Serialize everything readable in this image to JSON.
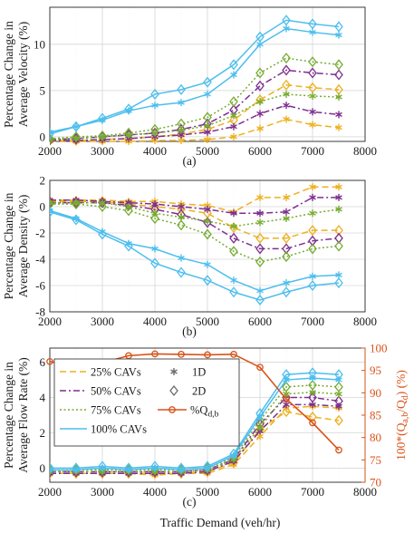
{
  "figure": {
    "xlabel": "Traffic Demand (veh/hr)",
    "x_ticks": [
      "2000",
      "3000",
      "4000",
      "5000",
      "6000",
      "7000",
      "8000"
    ],
    "x_ticks_bottom": [
      "2000",
      "3000",
      "4000",
      "5000",
      "6000",
      "7000",
      "8000"
    ]
  },
  "colors": {
    "p25": "#EDB120",
    "p50": "#7E2F8E",
    "p75": "#77AC30",
    "p100": "#4DBEEE",
    "flow": "#D95319",
    "grid": "#d6d6d6",
    "axis": "#262626"
  },
  "legend": {
    "items": [
      "25% CAVs",
      "50% CAVs",
      "75% CAVs",
      "100% CAVs"
    ],
    "marker_1d": "1D",
    "marker_2d": "2D",
    "flow_prefix": "%Q",
    "flow_sub": "d,b"
  },
  "chart_data": [
    {
      "type": "line",
      "panel_label": "(a)",
      "ylabel_lines": [
        "Percentage Change in",
        "Average Velocity (%)"
      ],
      "xlim": [
        2000,
        8000
      ],
      "ylim": [
        -0.5,
        14
      ],
      "y_ticks": [
        "0",
        "5",
        "10"
      ],
      "grid": true,
      "x": [
        2000,
        2500,
        3000,
        3500,
        4000,
        4500,
        5000,
        5500,
        6000,
        6500,
        7000,
        7500
      ],
      "series": [
        {
          "name": "25% CAVs",
          "marker": "1D",
          "values": [
            -0.5,
            -0.5,
            -0.5,
            -0.5,
            -0.4,
            -0.4,
            -0.3,
            0.0,
            0.9,
            1.9,
            1.3,
            1.0
          ]
        },
        {
          "name": "25% CAVs",
          "marker": "2D",
          "values": [
            -0.4,
            -0.4,
            -0.3,
            -0.2,
            0.0,
            0.3,
            0.8,
            1.8,
            4.0,
            5.6,
            5.3,
            5.1
          ]
        },
        {
          "name": "50% CAVs",
          "marker": "1D",
          "values": [
            -0.4,
            -0.4,
            -0.3,
            -0.2,
            0.0,
            0.2,
            0.5,
            1.1,
            2.5,
            3.4,
            2.7,
            2.4
          ]
        },
        {
          "name": "50% CAVs",
          "marker": "2D",
          "values": [
            -0.3,
            -0.2,
            0.0,
            0.2,
            0.4,
            0.8,
            1.4,
            2.9,
            5.5,
            7.2,
            6.9,
            6.7
          ]
        },
        {
          "name": "75% CAVs",
          "marker": "1D",
          "values": [
            -0.3,
            -0.2,
            0.0,
            0.2,
            0.4,
            0.7,
            1.2,
            2.3,
            3.8,
            4.6,
            4.4,
            4.3
          ]
        },
        {
          "name": "75% CAVs",
          "marker": "2D",
          "values": [
            -0.2,
            0.0,
            0.1,
            0.4,
            0.8,
            1.4,
            2.1,
            3.8,
            6.9,
            8.5,
            8.1,
            7.8
          ]
        },
        {
          "name": "100% CAVs",
          "marker": "1D",
          "values": [
            0.5,
            1.1,
            1.8,
            2.8,
            3.4,
            3.7,
            4.6,
            6.7,
            10.0,
            11.7,
            11.3,
            11.0
          ]
        },
        {
          "name": "100% CAVs",
          "marker": "2D",
          "values": [
            0.3,
            1.1,
            2.0,
            3.0,
            4.6,
            5.1,
            5.9,
            7.8,
            10.8,
            12.6,
            12.2,
            11.9
          ]
        }
      ]
    },
    {
      "type": "line",
      "panel_label": "(b)",
      "ylabel_lines": [
        "Percentage Change in",
        "Average Density (%)"
      ],
      "xlim": [
        2000,
        8000
      ],
      "ylim": [
        -8,
        2
      ],
      "y_ticks": [
        "2",
        "0",
        "-2",
        "-4",
        "-6",
        "-8"
      ],
      "grid": true,
      "x": [
        2000,
        2500,
        3000,
        3500,
        4000,
        4500,
        5000,
        5500,
        6000,
        6500,
        7000,
        7500
      ],
      "series": [
        {
          "name": "25% CAVs",
          "marker": "1D",
          "values": [
            0.5,
            0.5,
            0.5,
            0.4,
            0.4,
            0.2,
            0.1,
            -0.4,
            0.7,
            0.7,
            1.5,
            1.5
          ]
        },
        {
          "name": "25% CAVs",
          "marker": "2D",
          "values": [
            0.4,
            0.4,
            0.4,
            0.2,
            0.0,
            -0.2,
            -0.5,
            -1.6,
            -2.4,
            -2.4,
            -1.8,
            -1.8
          ]
        },
        {
          "name": "50% CAVs",
          "marker": "1D",
          "values": [
            0.5,
            0.5,
            0.4,
            0.3,
            0.2,
            0.0,
            -0.2,
            -0.5,
            -0.5,
            -0.4,
            0.7,
            0.7
          ]
        },
        {
          "name": "50% CAVs",
          "marker": "2D",
          "values": [
            0.3,
            0.3,
            0.3,
            0.1,
            -0.2,
            -0.6,
            -1.2,
            -2.4,
            -3.2,
            -3.2,
            -2.6,
            -2.4
          ]
        },
        {
          "name": "75% CAVs",
          "marker": "1D",
          "values": [
            0.3,
            0.3,
            0.3,
            0.0,
            -0.5,
            -0.8,
            -1.1,
            -1.5,
            -1.2,
            -0.9,
            -0.5,
            -0.2
          ]
        },
        {
          "name": "75% CAVs",
          "marker": "2D",
          "values": [
            0.2,
            0.2,
            0.0,
            -0.3,
            -0.9,
            -1.4,
            -2.1,
            -3.4,
            -4.2,
            -3.8,
            -3.2,
            -3.0
          ]
        },
        {
          "name": "100% CAVs",
          "marker": "1D",
          "values": [
            -0.3,
            -0.9,
            -1.9,
            -2.8,
            -3.2,
            -3.9,
            -4.4,
            -5.6,
            -6.4,
            -5.8,
            -5.3,
            -5.2
          ]
        },
        {
          "name": "100% CAVs",
          "marker": "2D",
          "values": [
            -0.4,
            -1.0,
            -2.1,
            -3.0,
            -4.3,
            -5.0,
            -5.6,
            -6.5,
            -7.1,
            -6.5,
            -6.0,
            -5.8
          ]
        }
      ]
    },
    {
      "type": "line",
      "panel_label": "(c)",
      "ylabel_lines": [
        "Percentage Change in",
        "Average Flow Rate (%)"
      ],
      "ylabel_right": "100*(Q_a,b/Q_d) (%)",
      "ylabel_right_parts": [
        "100*(Q",
        "a,b",
        "/Q",
        "d",
        ") (%)"
      ],
      "xlim": [
        2000,
        8000
      ],
      "ylim": [
        -0.8,
        6.8
      ],
      "y_ticks": [
        "0",
        "2",
        "4",
        "6"
      ],
      "y2lim": [
        70,
        100
      ],
      "y2_ticks": [
        "70",
        "75",
        "80",
        "85",
        "90",
        "95",
        "100"
      ],
      "grid": true,
      "x": [
        2000,
        2500,
        3000,
        3500,
        4000,
        4500,
        5000,
        5500,
        6000,
        6500,
        7000,
        7500
      ],
      "series": [
        {
          "name": "25% CAVs",
          "marker": "1D",
          "values": [
            -0.3,
            -0.3,
            -0.3,
            -0.3,
            -0.4,
            -0.3,
            -0.3,
            0.2,
            1.8,
            3.4,
            3.5,
            3.4
          ]
        },
        {
          "name": "25% CAVs",
          "marker": "2D",
          "values": [
            -0.3,
            -0.3,
            -0.3,
            -0.3,
            -0.3,
            -0.3,
            -0.2,
            0.3,
            2.2,
            3.2,
            2.9,
            2.7
          ]
        },
        {
          "name": "50% CAVs",
          "marker": "1D",
          "values": [
            -0.3,
            -0.3,
            -0.3,
            -0.3,
            -0.3,
            -0.3,
            -0.2,
            0.4,
            2.1,
            3.6,
            3.6,
            3.5
          ]
        },
        {
          "name": "50% CAVs",
          "marker": "2D",
          "values": [
            -0.2,
            -0.2,
            -0.2,
            -0.2,
            -0.2,
            -0.2,
            -0.1,
            0.5,
            2.5,
            4.0,
            4.0,
            3.8
          ]
        },
        {
          "name": "75% CAVs",
          "marker": "1D",
          "values": [
            -0.2,
            -0.2,
            -0.2,
            -0.2,
            -0.2,
            -0.2,
            -0.1,
            0.5,
            2.3,
            4.2,
            4.3,
            4.2
          ]
        },
        {
          "name": "75% CAVs",
          "marker": "2D",
          "values": [
            -0.1,
            -0.1,
            -0.1,
            -0.1,
            -0.1,
            -0.1,
            0.0,
            0.6,
            2.7,
            4.6,
            4.7,
            4.6
          ]
        },
        {
          "name": "100% CAVs",
          "marker": "1D",
          "values": [
            -0.1,
            -0.1,
            0.0,
            -0.1,
            0.0,
            -0.1,
            0.0,
            0.7,
            2.9,
            5.0,
            5.1,
            5.0
          ]
        },
        {
          "name": "100% CAVs",
          "marker": "2D",
          "values": [
            0.0,
            0.0,
            0.1,
            0.0,
            0.1,
            0.0,
            0.1,
            0.8,
            3.1,
            5.3,
            5.4,
            5.3
          ]
        }
      ],
      "flow_series": {
        "name": "%Q_d,b",
        "axis": "right",
        "values": [
          97.0,
          95.8,
          96.7,
          98.3,
          98.7,
          98.6,
          98.5,
          98.6,
          95.7,
          88.6,
          83.3,
          77.2
        ]
      }
    }
  ]
}
